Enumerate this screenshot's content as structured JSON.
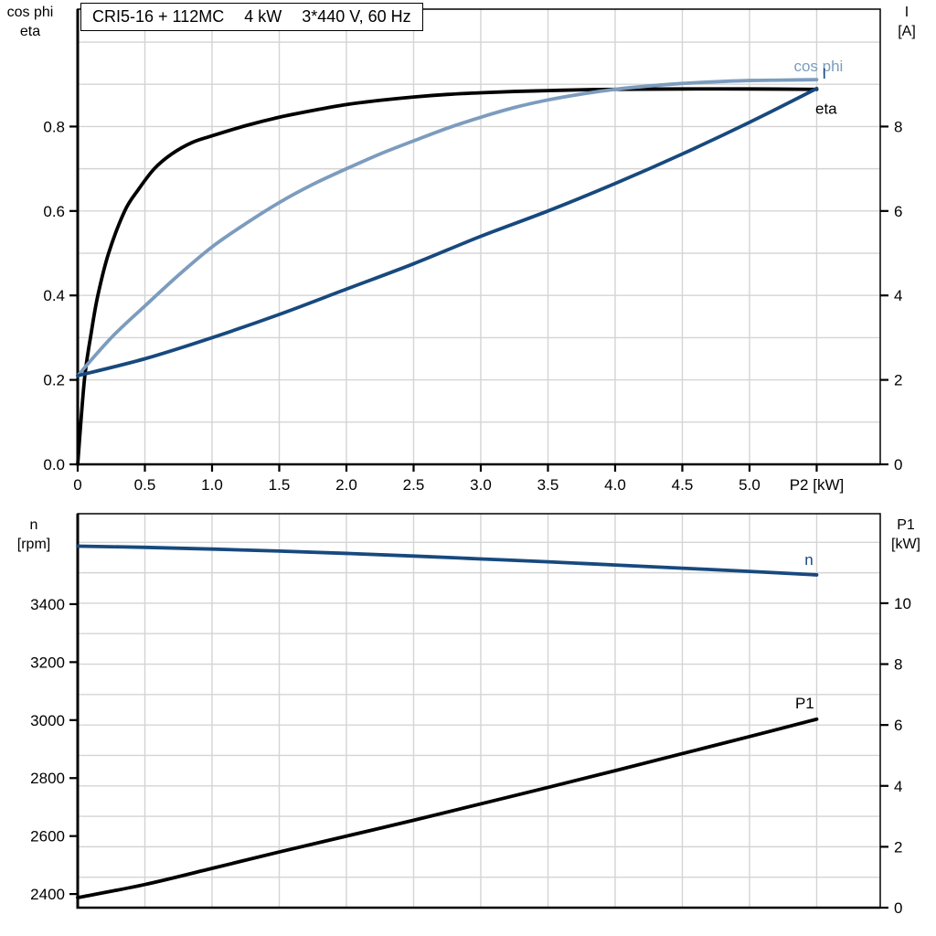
{
  "title_box": {
    "model": "CRI5-16 + 112MC",
    "power": "4 kW",
    "supply": "3*440 V, 60 Hz"
  },
  "axis_corner_labels": {
    "top_left_line1": "cos phi",
    "top_left_line2": "eta",
    "top_right_line1": "I",
    "top_right_line2": "[A]",
    "bottom_left_line1": "n",
    "bottom_left_line2": "[rpm]",
    "bottom_right_line1": "P1",
    "bottom_right_line2": "[kW]"
  },
  "colors": {
    "black": "#000000",
    "dark_blue": "#17497E",
    "light_blue": "#7C9CBE",
    "grid": "#D4D4D4",
    "frame": "#000000",
    "background": "#FFFFFF"
  },
  "chart_data": [
    {
      "id": "motor-efficiency-chart",
      "type": "line",
      "title": "CRI5-16 + 112MC   4 kW   3*440 V, 60 Hz",
      "x_axis": {
        "label": "P2 [kW]",
        "min": 0,
        "max": 5.973,
        "ticks": [
          0,
          0.5,
          1,
          1.5,
          2,
          2.5,
          3,
          3.5,
          4,
          4.5,
          5,
          5.5
        ],
        "tick_labels": [
          "0",
          "0.5",
          "1.0",
          "1.5",
          "2.0",
          "2.5",
          "3.0",
          "3.5",
          "4.0",
          "4.5",
          "5.0",
          "P2 [kW]"
        ],
        "show_labels": true,
        "grid_step": 0.5
      },
      "left_axis": {
        "name": "cos phi / eta",
        "min": 0,
        "max": 1.078,
        "ticks": [
          0,
          0.2,
          0.4,
          0.6,
          0.8
        ],
        "tick_labels": [
          "0.0",
          "0.2",
          "0.4",
          "0.6",
          "0.8"
        ]
      },
      "right_axis": {
        "name": "I [A]",
        "min": 0,
        "max": 10.78,
        "ticks": [
          0,
          2,
          4,
          6,
          8
        ],
        "tick_labels": [
          "0",
          "2",
          "4",
          "6",
          "8"
        ]
      },
      "h_grid": {
        "axis": "left",
        "step": 0.1,
        "from": 0.1,
        "to": 1.0
      },
      "series": [
        {
          "name": "eta",
          "axis": "left",
          "color": "#000000",
          "label": "eta",
          "label_color": "#000000",
          "label_at": [
            5.49,
            0.843
          ],
          "points": [
            [
              0,
              0
            ],
            [
              0.05,
              0.2
            ],
            [
              0.1,
              0.31
            ],
            [
              0.15,
              0.4
            ],
            [
              0.23,
              0.5
            ],
            [
              0.35,
              0.6
            ],
            [
              0.45,
              0.65
            ],
            [
              0.57,
              0.7
            ],
            [
              0.7,
              0.735
            ],
            [
              0.85,
              0.762
            ],
            [
              1.0,
              0.778
            ],
            [
              1.25,
              0.802
            ],
            [
              1.5,
              0.822
            ],
            [
              1.75,
              0.838
            ],
            [
              2.0,
              0.852
            ],
            [
              2.25,
              0.862
            ],
            [
              2.5,
              0.87
            ],
            [
              2.75,
              0.876
            ],
            [
              3.0,
              0.88
            ],
            [
              3.25,
              0.883
            ],
            [
              3.5,
              0.885
            ],
            [
              3.75,
              0.887
            ],
            [
              4.0,
              0.888
            ],
            [
              4.5,
              0.889
            ],
            [
              5.0,
              0.889
            ],
            [
              5.5,
              0.888
            ]
          ]
        },
        {
          "name": "cos phi",
          "axis": "left",
          "color": "#7C9CBE",
          "label": "cos phi",
          "label_color": "#7C9CBE",
          "label_at": [
            5.33,
            0.944
          ],
          "points": [
            [
              0,
              0.21
            ],
            [
              0.25,
              0.3
            ],
            [
              0.5,
              0.375
            ],
            [
              0.75,
              0.448
            ],
            [
              1.0,
              0.515
            ],
            [
              1.25,
              0.57
            ],
            [
              1.5,
              0.62
            ],
            [
              1.75,
              0.663
            ],
            [
              2.0,
              0.7
            ],
            [
              2.25,
              0.735
            ],
            [
              2.5,
              0.766
            ],
            [
              2.75,
              0.796
            ],
            [
              3.0,
              0.822
            ],
            [
              3.25,
              0.845
            ],
            [
              3.5,
              0.863
            ],
            [
              3.75,
              0.877
            ],
            [
              4.0,
              0.888
            ],
            [
              4.25,
              0.896
            ],
            [
              4.5,
              0.902
            ],
            [
              4.75,
              0.906
            ],
            [
              5.0,
              0.909
            ],
            [
              5.25,
              0.91
            ],
            [
              5.5,
              0.911
            ]
          ]
        },
        {
          "name": "I",
          "axis": "right",
          "color": "#17497E",
          "label": "I",
          "label_color": "#17497E",
          "label_at": [
            5.54,
            9.26
          ],
          "points": [
            [
              0,
              2.1
            ],
            [
              0.5,
              2.5
            ],
            [
              1.0,
              3.0
            ],
            [
              1.5,
              3.55
            ],
            [
              2.0,
              4.15
            ],
            [
              2.5,
              4.75
            ],
            [
              3.0,
              5.4
            ],
            [
              3.5,
              6.0
            ],
            [
              4.0,
              6.65
            ],
            [
              4.5,
              7.35
            ],
            [
              5.0,
              8.1
            ],
            [
              5.5,
              8.9
            ]
          ]
        }
      ]
    },
    {
      "id": "motor-speed-power-chart",
      "type": "line",
      "x_axis": {
        "label": "",
        "min": 0,
        "max": 5.973,
        "ticks": [],
        "tick_labels": [],
        "show_labels": false,
        "grid_step": 0.5
      },
      "left_axis": {
        "name": "n [rpm]",
        "min": 2353,
        "max": 3712,
        "ticks": [
          2400,
          2600,
          2800,
          3000,
          3200,
          3400
        ],
        "tick_labels": [
          "2400",
          "2600",
          "2800",
          "3000",
          "3200",
          "3400"
        ]
      },
      "right_axis": {
        "name": "P1 [kW]",
        "min": 0,
        "max": 12.94,
        "ticks": [
          0,
          2,
          4,
          6,
          8,
          10
        ],
        "tick_labels": [
          "0",
          "2",
          "4",
          "6",
          "8",
          "10"
        ]
      },
      "h_grid": {
        "axis": "right",
        "step": 1,
        "from": 1,
        "to": 12
      },
      "series": [
        {
          "name": "n",
          "axis": "left",
          "color": "#17497E",
          "label": "n",
          "label_color": "#17497E",
          "label_at": [
            5.41,
            3554
          ],
          "points": [
            [
              0,
              3600
            ],
            [
              0.5,
              3596
            ],
            [
              1.0,
              3590
            ],
            [
              1.5,
              3583
            ],
            [
              2.0,
              3575
            ],
            [
              2.5,
              3566
            ],
            [
              3.0,
              3556
            ],
            [
              3.5,
              3546
            ],
            [
              4.0,
              3535
            ],
            [
              4.5,
              3524
            ],
            [
              5.0,
              3513
            ],
            [
              5.5,
              3501
            ]
          ]
        },
        {
          "name": "P1",
          "axis": "right",
          "color": "#000000",
          "label": "P1",
          "label_color": "#000000",
          "label_at": [
            5.34,
            6.73
          ],
          "points": [
            [
              0,
              0.33
            ],
            [
              0.5,
              0.76
            ],
            [
              1.0,
              1.29
            ],
            [
              1.5,
              1.83
            ],
            [
              2.0,
              2.35
            ],
            [
              2.5,
              2.87
            ],
            [
              3.0,
              3.41
            ],
            [
              3.5,
              3.95
            ],
            [
              4.0,
              4.5
            ],
            [
              4.5,
              5.06
            ],
            [
              5.0,
              5.62
            ],
            [
              5.5,
              6.19
            ]
          ]
        }
      ]
    }
  ]
}
